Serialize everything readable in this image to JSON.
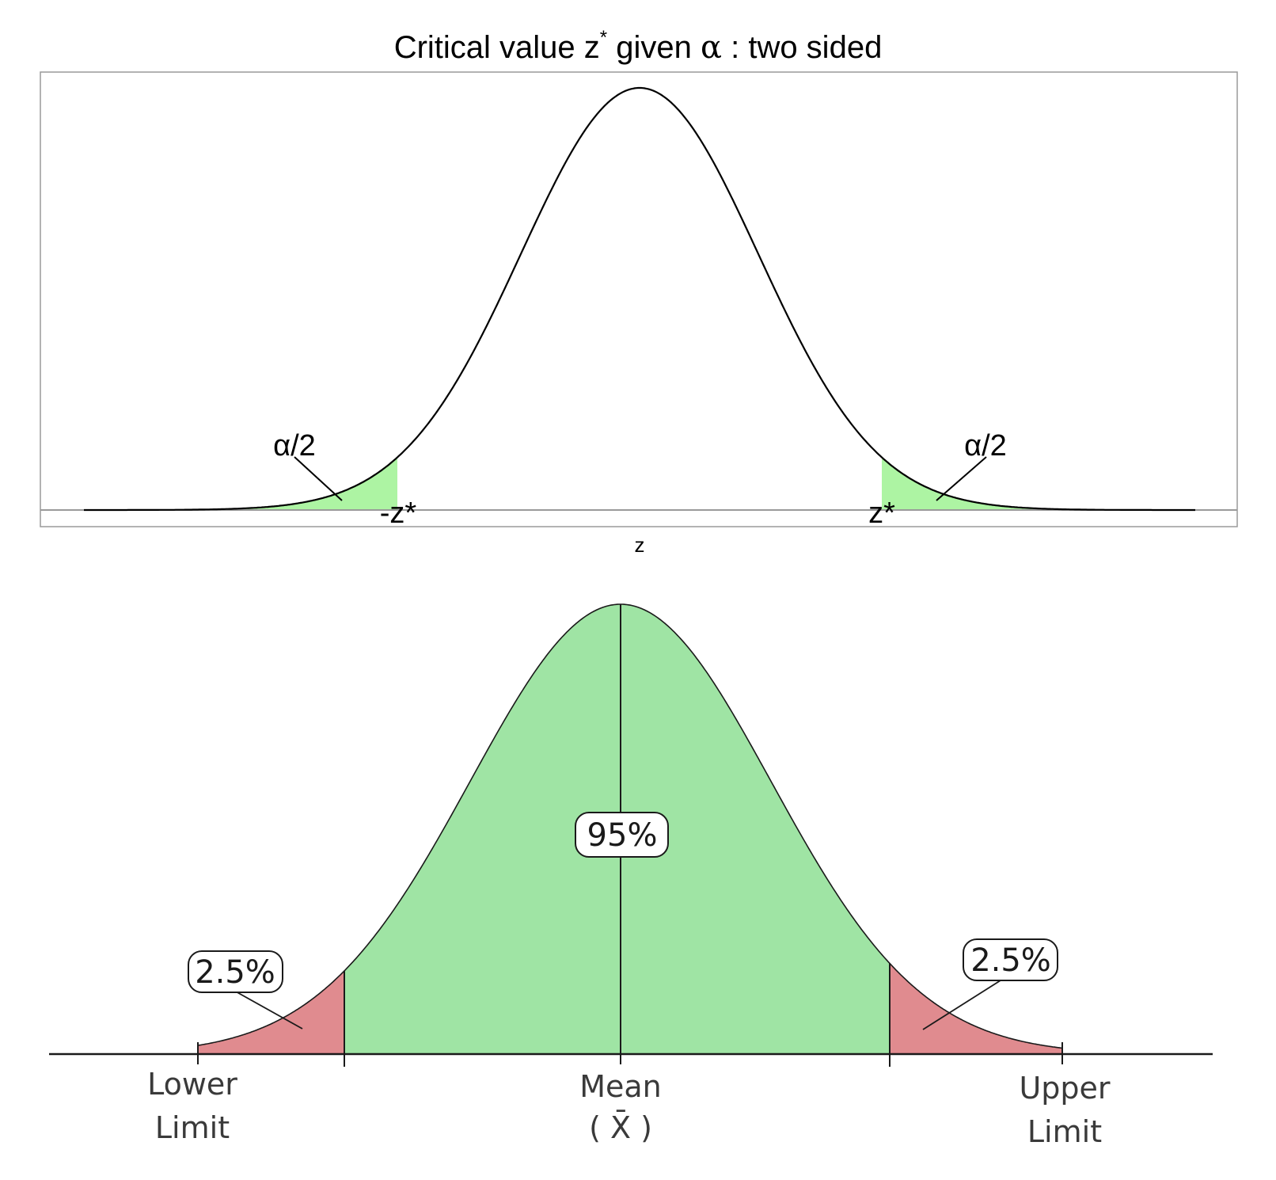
{
  "top": {
    "title_pre": "Critical value z",
    "title_sup": "*",
    "title_mid": " given ",
    "title_alpha": "α",
    "title_post": " : two sided",
    "xlabel": "z",
    "left_tail_label": "α/2",
    "right_tail_label": "α/2",
    "left_crit_label": "-z*",
    "right_crit_label": "z*",
    "tail_color": "#adf4a3",
    "curve_color": "#000000",
    "frame_color": "#9a9a9a"
  },
  "bottom": {
    "center_label": "95%",
    "left_tail_label": "2.5%",
    "right_tail_label": "2.5%",
    "lower_limit_line1": "Lower",
    "lower_limit_line2": "Limit",
    "mean_line1": "Mean",
    "mean_line2": "( X̄ )",
    "upper_limit_line1": "Upper",
    "upper_limit_line2": "Limit",
    "center_color": "#9fe4a4",
    "tail_color": "#e08b8f"
  },
  "chart_data": [
    {
      "type": "area",
      "title": "Critical value z* given α : two sided",
      "xlabel": "z",
      "ylabel": "",
      "series": [
        {
          "name": "",
          "distribution": "standard normal density"
        }
      ],
      "shaded_regions": [
        {
          "label": "α/2",
          "side": "left",
          "boundary": "-z*"
        },
        {
          "label": "α/2",
          "side": "right",
          "boundary": "z*"
        }
      ],
      "annotations": [
        "α/2",
        "α/2",
        "-z*",
        "z*"
      ]
    },
    {
      "type": "area",
      "title": "",
      "series": [
        {
          "name": "",
          "distribution": "normal density"
        }
      ],
      "regions": [
        {
          "label": "2.5%",
          "percent": 2.5,
          "side": "left tail"
        },
        {
          "label": "95%",
          "percent": 95,
          "side": "center"
        },
        {
          "label": "2.5%",
          "percent": 2.5,
          "side": "right tail"
        }
      ],
      "tick_labels": [
        "Lower Limit",
        "Mean ( X̄ )",
        "Upper Limit"
      ]
    }
  ]
}
